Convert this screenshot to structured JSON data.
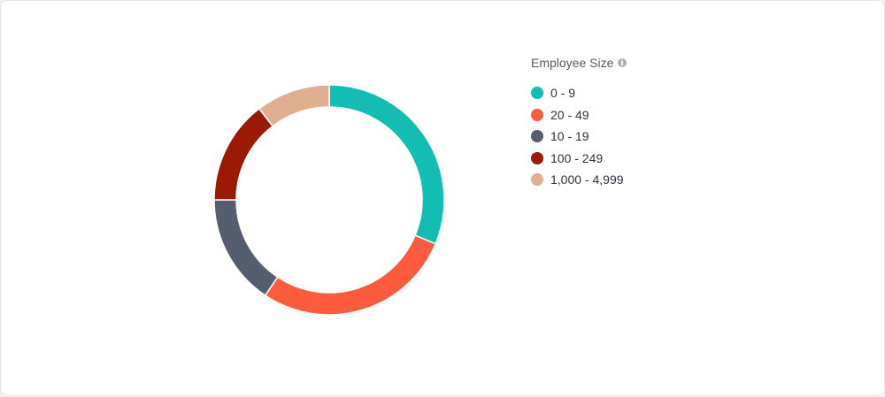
{
  "chart_data": {
    "type": "pie",
    "legend_title": "Employee Size",
    "legend_position": "right",
    "categories": [
      "0 - 9",
      "20 - 49",
      "10 - 19",
      "100 - 249",
      "1,000 - 4,999"
    ],
    "values": [
      30,
      27,
      15,
      14,
      10
    ],
    "colors": [
      "#14bdb3",
      "#fe5a3d",
      "#545e70",
      "#9a1a05",
      "#dfaf8f"
    ]
  },
  "icons": {
    "legend_info": "info-icon"
  }
}
